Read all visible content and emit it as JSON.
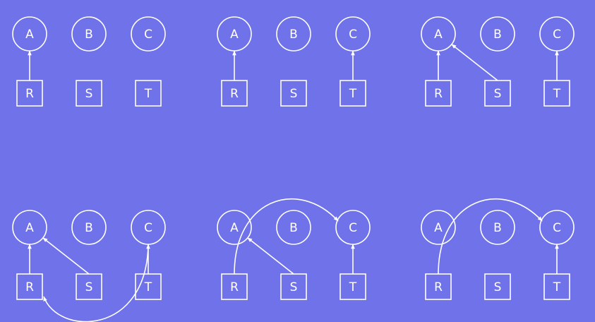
{
  "colors": {
    "background": "#6f72e8",
    "stroke": "#ffffff"
  },
  "panels": [
    {
      "circles": [
        "A",
        "B",
        "C"
      ],
      "boxes": [
        "R",
        "S",
        "T"
      ],
      "edges": [
        {
          "from": "R",
          "to": "A",
          "style": "straight"
        }
      ]
    },
    {
      "circles": [
        "A",
        "B",
        "C"
      ],
      "boxes": [
        "R",
        "S",
        "T"
      ],
      "edges": [
        {
          "from": "R",
          "to": "A",
          "style": "straight"
        },
        {
          "from": "T",
          "to": "C",
          "style": "straight"
        }
      ]
    },
    {
      "circles": [
        "A",
        "B",
        "C"
      ],
      "boxes": [
        "R",
        "S",
        "T"
      ],
      "edges": [
        {
          "from": "R",
          "to": "A",
          "style": "straight"
        },
        {
          "from": "S",
          "to": "A",
          "style": "straight"
        },
        {
          "from": "T",
          "to": "C",
          "style": "straight"
        }
      ]
    },
    {
      "circles": [
        "A",
        "B",
        "C"
      ],
      "boxes": [
        "R",
        "S",
        "T"
      ],
      "edges": [
        {
          "from": "R",
          "to": "A",
          "style": "straight"
        },
        {
          "from": "S",
          "to": "A",
          "style": "straight"
        },
        {
          "from": "C",
          "to": "R",
          "style": "curved-below"
        },
        {
          "from": "T",
          "to": "C",
          "style": "straight"
        }
      ]
    },
    {
      "circles": [
        "A",
        "B",
        "C"
      ],
      "boxes": [
        "R",
        "S",
        "T"
      ],
      "edges": [
        {
          "from": "R",
          "to": "C",
          "style": "curved-above"
        },
        {
          "from": "S",
          "to": "A",
          "style": "straight"
        },
        {
          "from": "T",
          "to": "C",
          "style": "straight"
        }
      ]
    },
    {
      "circles": [
        "A",
        "B",
        "C"
      ],
      "boxes": [
        "R",
        "S",
        "T"
      ],
      "edges": [
        {
          "from": "R",
          "to": "C",
          "style": "curved-above"
        },
        {
          "from": "T",
          "to": "C",
          "style": "straight"
        }
      ]
    }
  ]
}
